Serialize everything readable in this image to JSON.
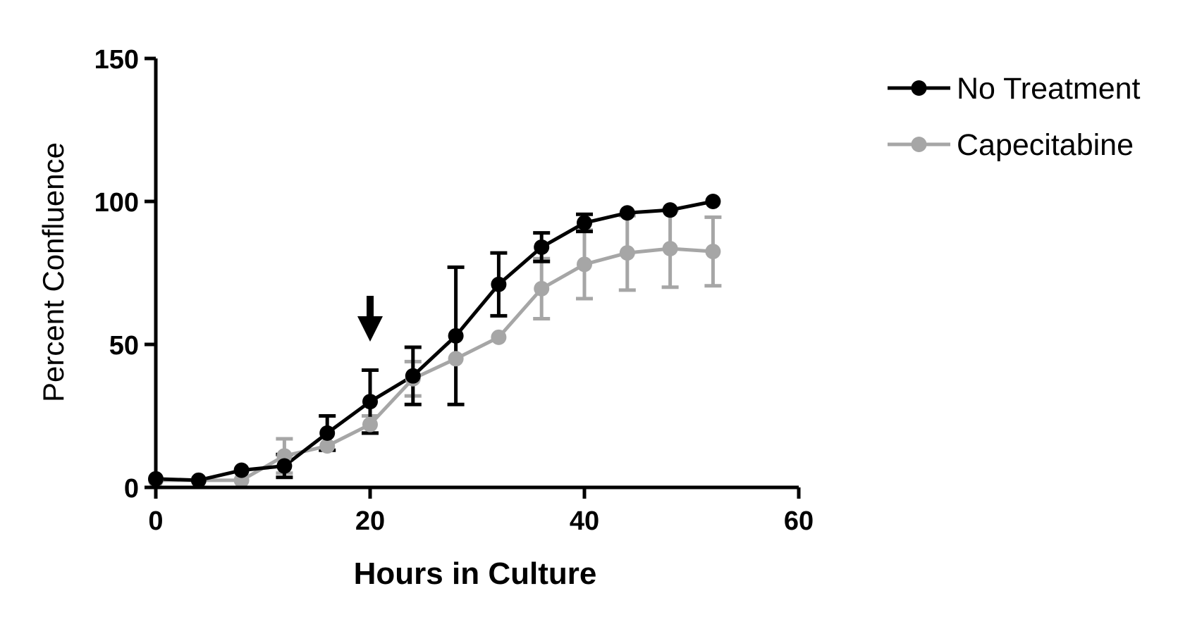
{
  "chart_data": {
    "type": "line",
    "title": "",
    "xlabel": "Hours in Culture",
    "ylabel": "Percent Confluence",
    "xlim": [
      0,
      60
    ],
    "ylim": [
      0,
      150
    ],
    "xticks": [
      0,
      20,
      40,
      60
    ],
    "yticks": [
      0,
      50,
      100,
      150
    ],
    "grid": false,
    "legend_position": "top-right",
    "annotation": {
      "type": "arrow-down",
      "x": 20,
      "y_tip": 51,
      "y_tail": 67
    },
    "series": [
      {
        "name": "No Treatment",
        "color": "#000000",
        "x": [
          0,
          4,
          8,
          12,
          16,
          20,
          24,
          28,
          32,
          36,
          40,
          44,
          48,
          52
        ],
        "y": [
          3,
          2.5,
          6,
          7.5,
          19,
          30,
          39,
          53,
          71,
          84,
          92.5,
          96,
          97,
          100
        ],
        "err": [
          0,
          0,
          0,
          4,
          6,
          11,
          10,
          24,
          11,
          5,
          3,
          0,
          0,
          0
        ]
      },
      {
        "name": "Capecitabine",
        "color": "#a6a6a6",
        "x": [
          0,
          4,
          8,
          12,
          16,
          20,
          24,
          28,
          32,
          36,
          40,
          44,
          48,
          52
        ],
        "y": [
          2.5,
          2.5,
          2.5,
          11,
          14.5,
          22,
          38,
          45,
          52.5,
          69.5,
          78,
          82,
          83.5,
          82.5
        ],
        "err": [
          0,
          0,
          0,
          6,
          0,
          3,
          6,
          0,
          0,
          10.5,
          12,
          13,
          13.5,
          12
        ]
      }
    ]
  }
}
